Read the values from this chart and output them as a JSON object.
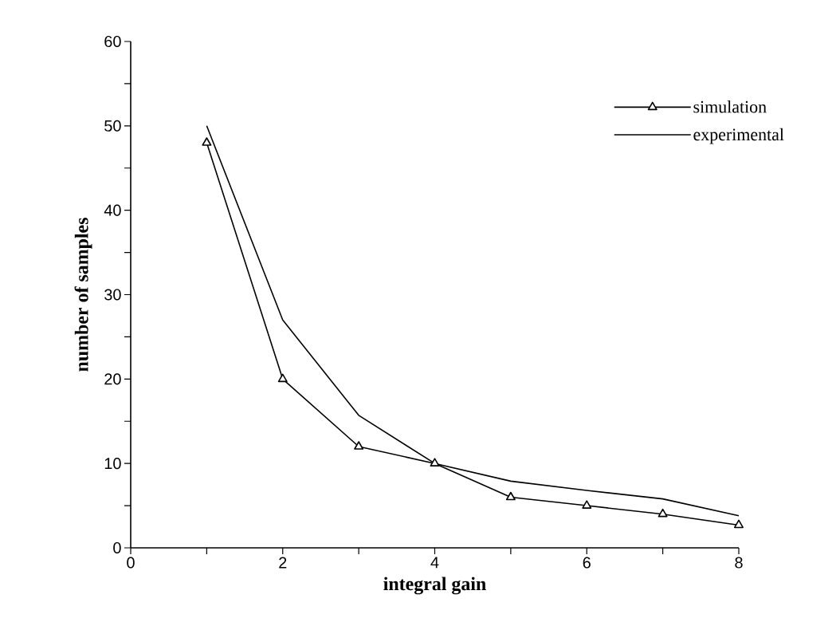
{
  "chart_data": {
    "type": "line",
    "xlabel": "integral gain",
    "ylabel": "number of samples",
    "x": [
      1,
      2,
      3,
      4,
      5,
      6,
      7,
      8
    ],
    "series": [
      {
        "name": "simulation",
        "color": "#000000",
        "marker": "triangle",
        "values": [
          48,
          20,
          12,
          10,
          6,
          5,
          4,
          2.7
        ]
      },
      {
        "name": "experimental",
        "color": "#000000",
        "marker": "none",
        "values": [
          50,
          27,
          15.7,
          10,
          7.9,
          6.8,
          5.8,
          3.8
        ]
      }
    ],
    "xlim": [
      0,
      8
    ],
    "ylim": [
      0,
      60
    ],
    "xticks": [
      0,
      {
        "value": 1,
        "label": null
      },
      2,
      {
        "value": 3,
        "label": null
      },
      4,
      {
        "value": 5,
        "label": null
      },
      6,
      {
        "value": 7,
        "label": null
      },
      8
    ],
    "yticks": [
      0,
      {
        "value": 5,
        "label": null
      },
      10,
      {
        "value": 15,
        "label": null
      },
      20,
      {
        "value": 25,
        "label": null
      },
      30,
      {
        "value": 35,
        "label": null
      },
      40,
      {
        "value": 45,
        "label": null
      },
      50,
      {
        "value": 55,
        "label": null
      },
      60
    ],
    "legend": "right",
    "grid": false,
    "line_style": "solid"
  }
}
